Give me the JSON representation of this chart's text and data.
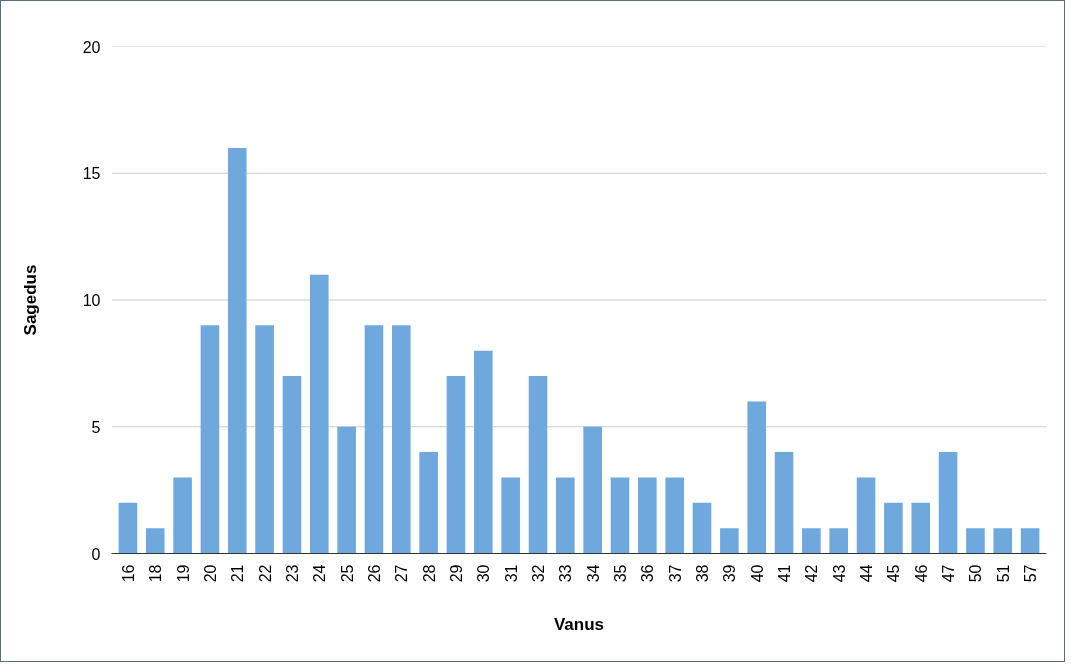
{
  "chart_data": {
    "type": "bar",
    "xlabel": "Vanus",
    "ylabel": "Sagedus",
    "categories": [
      "16",
      "18",
      "19",
      "20",
      "21",
      "22",
      "23",
      "24",
      "25",
      "26",
      "27",
      "28",
      "29",
      "30",
      "31",
      "32",
      "33",
      "34",
      "35",
      "36",
      "37",
      "38",
      "39",
      "40",
      "41",
      "42",
      "43",
      "44",
      "45",
      "46",
      "47",
      "50",
      "51",
      "57"
    ],
    "values": [
      2,
      1,
      3,
      9,
      16,
      9,
      7,
      11,
      5,
      9,
      9,
      4,
      7,
      8,
      3,
      7,
      3,
      5,
      3,
      3,
      3,
      2,
      1,
      6,
      4,
      1,
      1,
      3,
      2,
      2,
      4,
      1,
      1,
      1
    ],
    "color": "#6fa8dc",
    "ylim": [
      0,
      20
    ],
    "yticks": [
      0,
      5,
      10,
      15,
      20
    ],
    "grid": "y"
  }
}
